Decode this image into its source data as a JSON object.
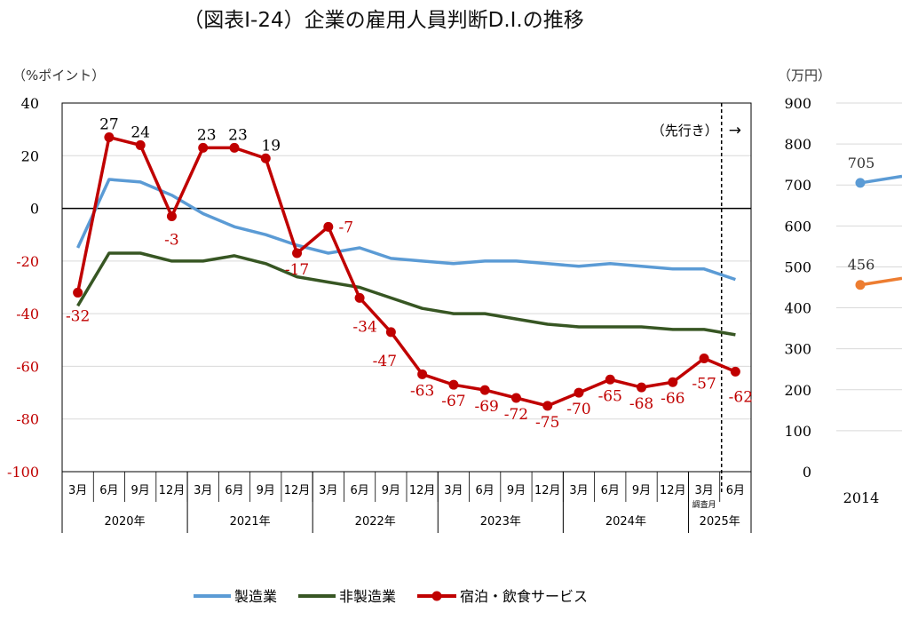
{
  "title": "（図表Ⅰ-24）企業の雇用人員判断D.I.の推移",
  "chart_data": [
    {
      "type": "line",
      "ylabel": "（%ポイント）",
      "ylim": [
        -100,
        40
      ],
      "yticks": [
        40,
        20,
        0,
        -20,
        -40,
        -60,
        -80,
        -100
      ],
      "grid": true,
      "categories": [
        "3月",
        "6月",
        "9月",
        "12月",
        "3月",
        "6月",
        "9月",
        "12月",
        "3月",
        "6月",
        "9月",
        "12月",
        "3月",
        "6月",
        "9月",
        "12月",
        "3月",
        "6月",
        "9月",
        "12月",
        "3月",
        "6月"
      ],
      "years": [
        {
          "label": "2020年",
          "count": 4
        },
        {
          "label": "2021年",
          "count": 4
        },
        {
          "label": "2022年",
          "count": 4
        },
        {
          "label": "2023年",
          "count": 4
        },
        {
          "label": "2024年",
          "count": 4
        },
        {
          "label": "2025年",
          "count": 2
        }
      ],
      "survey_month_note": "調査月",
      "forecast_label": "（先行き）",
      "forecast_arrow": "→",
      "forecast_start_index": 21,
      "series": [
        {
          "name": "製造業",
          "color": "#5b9bd5",
          "values": [
            -15,
            11,
            10,
            5,
            -2,
            -7,
            -10,
            -14,
            -17,
            -15,
            -19,
            -20,
            -21,
            -20,
            -20,
            -21,
            -22,
            -21,
            -22,
            -23,
            -23,
            -27
          ],
          "labels": false
        },
        {
          "name": "非製造業",
          "color": "#375623",
          "values": [
            -37,
            -17,
            -17,
            -20,
            -20,
            -18,
            -21,
            -26,
            -28,
            -30,
            -34,
            -38,
            -40,
            -40,
            -42,
            -44,
            -45,
            -45,
            -45,
            -46,
            -46,
            -48
          ],
          "labels": false
        },
        {
          "name": "宿泊・飲食サービス",
          "color": "#c00000",
          "values": [
            -32,
            27,
            24,
            -3,
            23,
            23,
            19,
            -17,
            -7,
            -34,
            -47,
            -63,
            -67,
            -69,
            -72,
            -75,
            -70,
            -65,
            -68,
            -66,
            -57,
            -62
          ],
          "labels": true
        }
      ]
    },
    {
      "type": "line",
      "ylabel": "（万円）",
      "ylim": [
        0,
        900
      ],
      "yticks": [
        900,
        800,
        700,
        600,
        500,
        400,
        300,
        200,
        100,
        0
      ],
      "grid": true,
      "categories": [
        "2014"
      ],
      "series": [
        {
          "color": "#5b9bd5",
          "values": [
            705
          ]
        },
        {
          "color": "#ed7d31",
          "values": [
            456
          ]
        }
      ]
    }
  ]
}
